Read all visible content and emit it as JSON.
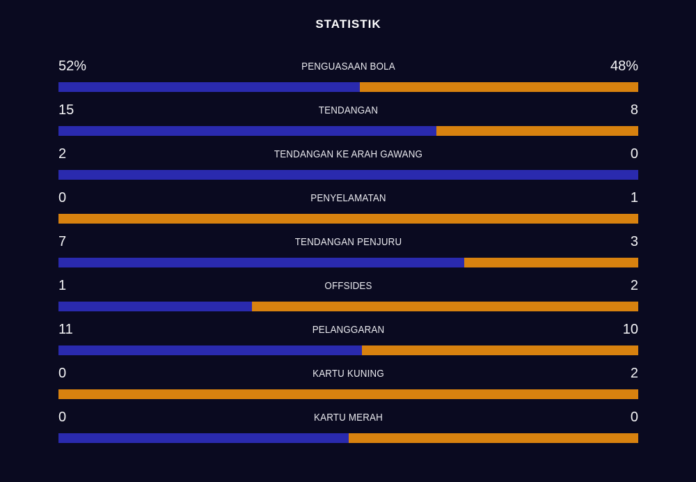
{
  "title": "STATISTIK",
  "colors": {
    "background": "#0a0a20",
    "home_bar": "#2a2aae",
    "away_bar": "#d8820f",
    "title_text": "#ffffff",
    "value_text": "#f4f4f6",
    "label_text": "#e9e9ee"
  },
  "chart_data": {
    "type": "bar",
    "title": "STATISTIK",
    "orientation": "horizontal-stacked-comparison",
    "legend": "none",
    "series_sides": [
      "home-left-blue",
      "away-right-orange"
    ],
    "rows": [
      {
        "label": "PENGUASAAN BOLA",
        "home_display": "52%",
        "away_display": "48%",
        "home": 52,
        "away": 48
      },
      {
        "label": "TENDANGAN",
        "home_display": "15",
        "away_display": "8",
        "home": 15,
        "away": 8
      },
      {
        "label": "TENDANGAN KE ARAH GAWANG",
        "home_display": "2",
        "away_display": "0",
        "home": 2,
        "away": 0
      },
      {
        "label": "PENYELAMATAN",
        "home_display": "0",
        "away_display": "1",
        "home": 0,
        "away": 1
      },
      {
        "label": "TENDANGAN PENJURU",
        "home_display": "7",
        "away_display": "3",
        "home": 7,
        "away": 3
      },
      {
        "label": "OFFSIDES",
        "home_display": "1",
        "away_display": "2",
        "home": 1,
        "away": 2
      },
      {
        "label": "PELANGGARAN",
        "home_display": "11",
        "away_display": "10",
        "home": 11,
        "away": 10
      },
      {
        "label": "KARTU KUNING",
        "home_display": "0",
        "away_display": "2",
        "home": 0,
        "away": 2
      },
      {
        "label": "KARTU MERAH",
        "home_display": "0",
        "away_display": "0",
        "home": 0,
        "away": 0
      }
    ]
  }
}
